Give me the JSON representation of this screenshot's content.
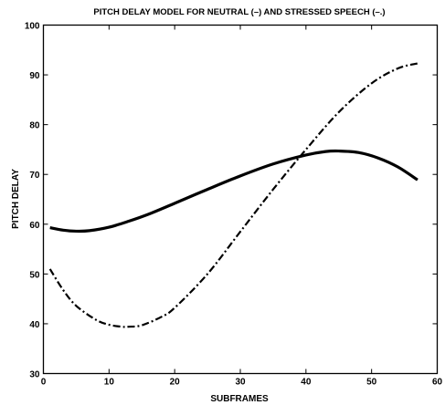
{
  "chart_data": {
    "type": "line",
    "title": "PITCH DELAY MODEL FOR NEUTRAL (–) AND STRESSED SPEECH (–.)",
    "xlabel": "SUBFRAMES",
    "ylabel": "PITCH DELAY",
    "xlim": [
      0,
      60
    ],
    "ylim": [
      30,
      100
    ],
    "xticks": [
      0,
      10,
      20,
      30,
      40,
      50,
      60
    ],
    "yticks": [
      30,
      40,
      50,
      60,
      70,
      80,
      90,
      100
    ],
    "grid": false,
    "series": [
      {
        "line_style": "solid",
        "color": "#000000",
        "x": [
          1,
          3,
          5,
          7,
          10,
          13,
          16,
          20,
          25,
          30,
          35,
          40,
          43,
          45,
          48,
          51,
          54,
          57
        ],
        "y": [
          59.3,
          58.8,
          58.6,
          58.7,
          59.4,
          60.6,
          62.0,
          64.2,
          67.0,
          69.7,
          72.1,
          73.9,
          74.6,
          74.7,
          74.4,
          73.3,
          71.5,
          68.9
        ]
      },
      {
        "line_style": "dashdot",
        "color": "#000000",
        "x": [
          1,
          3,
          5,
          8,
          10,
          12,
          13,
          15,
          18,
          20,
          25,
          30,
          35,
          40,
          45,
          50,
          54,
          57
        ],
        "y": [
          51.0,
          46.8,
          43.6,
          40.8,
          39.8,
          39.4,
          39.4,
          39.7,
          41.4,
          43.2,
          50.0,
          58.5,
          67.0,
          75.0,
          82.5,
          88.3,
          91.3,
          92.3
        ]
      }
    ]
  }
}
